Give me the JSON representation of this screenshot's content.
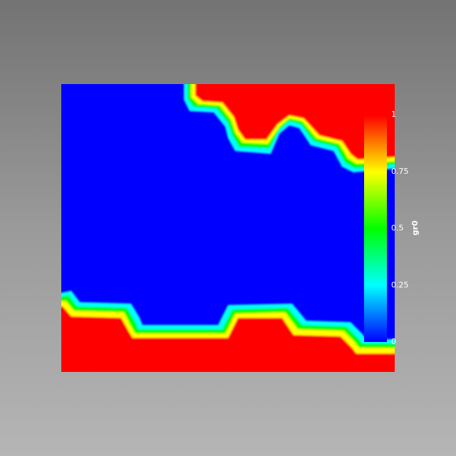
{
  "colorbar": {
    "title": "gr0",
    "ticks": [
      {
        "value": 0,
        "label": "0"
      },
      {
        "value": 0.25,
        "label": "0.25"
      },
      {
        "value": 0.5,
        "label": "0.5"
      },
      {
        "value": 0.75,
        "label": "0.75"
      },
      {
        "value": 1,
        "label": "1"
      }
    ],
    "range": [
      0,
      1
    ],
    "colormap": [
      "#0000ff",
      "#00ffff",
      "#00ff00",
      "#ffff00",
      "#ff0000"
    ]
  },
  "field": {
    "low_color": "#0000ff",
    "high_color": "#ff0000",
    "background_top": "#737373",
    "background_bottom": "#b5b5b5"
  }
}
